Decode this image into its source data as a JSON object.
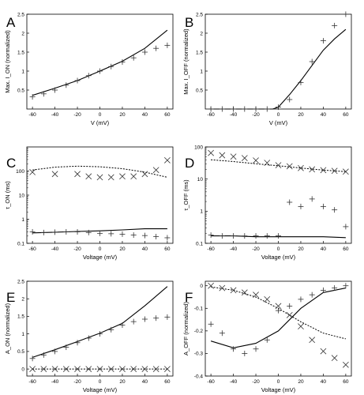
{
  "chart_data": [
    {
      "panel": "A",
      "type": "line",
      "xlabel": "V (mV)",
      "ylabel": "Max. I_ON (normalized)",
      "xlim": [
        -65,
        65
      ],
      "ylim": [
        0,
        2.5
      ],
      "xticks": [
        -60,
        -40,
        -20,
        0,
        20,
        40,
        60
      ],
      "yticks": [
        0.5,
        1,
        1.5,
        2,
        2.5
      ],
      "series": [
        {
          "style": "solid",
          "x": [
            -60,
            -40,
            -20,
            0,
            20,
            40,
            60
          ],
          "y": [
            0.36,
            0.55,
            0.75,
            1.0,
            1.26,
            1.6,
            2.08
          ]
        },
        {
          "style": "plus",
          "x": [
            -60,
            -50,
            -40,
            -30,
            -20,
            -10,
            0,
            10,
            20,
            30,
            40,
            50,
            60
          ],
          "y": [
            0.32,
            0.4,
            0.5,
            0.63,
            0.75,
            0.88,
            1.0,
            1.12,
            1.24,
            1.35,
            1.5,
            1.6,
            1.68
          ]
        }
      ]
    },
    {
      "panel": "B",
      "type": "line",
      "xlabel": "V (mV)",
      "ylabel": "Max. I_OFF (normalized)",
      "xlim": [
        -65,
        65
      ],
      "ylim": [
        0,
        2.5
      ],
      "xticks": [
        -60,
        -40,
        -20,
        0,
        20,
        40,
        60
      ],
      "yticks": [
        0.5,
        1,
        1.5,
        2,
        2.5
      ],
      "series": [
        {
          "style": "solid",
          "x": [
            -60,
            -20,
            -5,
            0,
            10,
            20,
            30,
            40,
            50,
            60
          ],
          "y": [
            0.0,
            0.0,
            0.0,
            0.05,
            0.38,
            0.75,
            1.15,
            1.55,
            1.85,
            2.1
          ]
        },
        {
          "style": "plus",
          "x": [
            -60,
            -50,
            -40,
            -30,
            -20,
            -10,
            0,
            10,
            20,
            30,
            40,
            50,
            60
          ],
          "y": [
            0.0,
            0.0,
            0.0,
            0.0,
            0.0,
            0.0,
            0.05,
            0.25,
            0.7,
            1.25,
            1.8,
            2.2,
            2.5
          ]
        }
      ]
    },
    {
      "panel": "C",
      "type": "line",
      "xlabel": "Voltage (mV)",
      "ylabel": "τ_ON (ms)",
      "yscale": "log",
      "xlim": [
        -65,
        65
      ],
      "ylim": [
        0.1,
        1000
      ],
      "xticks": [
        -60,
        -40,
        -20,
        0,
        20,
        40,
        60
      ],
      "yticks": [
        0.1,
        1,
        10,
        100
      ],
      "series": [
        {
          "style": "dotted",
          "x": [
            -60,
            -40,
            -20,
            0,
            20,
            40,
            60
          ],
          "y": [
            110,
            145,
            160,
            150,
            125,
            90,
            55
          ]
        },
        {
          "style": "solid",
          "x": [
            -60,
            -40,
            -20,
            0,
            20,
            40,
            60
          ],
          "y": [
            0.27,
            0.29,
            0.31,
            0.33,
            0.36,
            0.4,
            0.4
          ]
        },
        {
          "style": "cross",
          "x": [
            -60,
            -40,
            -20,
            -10,
            0,
            10,
            20,
            30,
            40,
            50,
            60
          ],
          "y": [
            90,
            75,
            75,
            60,
            55,
            55,
            60,
            60,
            75,
            110,
            280
          ]
        },
        {
          "style": "plus",
          "x": [
            -60,
            -50,
            -40,
            -30,
            -20,
            -10,
            0,
            10,
            20,
            30,
            40,
            50,
            60
          ],
          "y": [
            0.3,
            0.28,
            0.29,
            0.3,
            0.3,
            0.28,
            0.26,
            0.25,
            0.24,
            0.22,
            0.21,
            0.19,
            0.17
          ]
        }
      ]
    },
    {
      "panel": "D",
      "type": "line",
      "xlabel": "Voltage (mV)",
      "ylabel": "τ_OFF (ms)",
      "yscale": "log",
      "xlim": [
        -65,
        65
      ],
      "ylim": [
        0.1,
        100
      ],
      "xticks": [
        -60,
        -40,
        -20,
        0,
        20,
        40,
        60
      ],
      "yticks": [
        0.1,
        1,
        10,
        100
      ],
      "series": [
        {
          "style": "dotted",
          "x": [
            -60,
            -40,
            -20,
            0,
            20,
            40,
            60
          ],
          "y": [
            40,
            35,
            30,
            26,
            22,
            19,
            17
          ]
        },
        {
          "style": "solid",
          "x": [
            -60,
            -40,
            -20,
            0,
            20,
            40,
            60
          ],
          "y": [
            0.17,
            0.17,
            0.16,
            0.16,
            0.16,
            0.16,
            0.15
          ]
        },
        {
          "style": "cross",
          "x": [
            -60,
            -50,
            -40,
            -30,
            -20,
            -10,
            0,
            10,
            20,
            30,
            40,
            50,
            60
          ],
          "y": [
            65,
            55,
            50,
            45,
            38,
            32,
            27,
            25,
            22,
            20,
            19,
            18,
            17
          ]
        },
        {
          "style": "plus",
          "x": [
            -60,
            -50,
            -40,
            -30,
            -20,
            -10,
            0,
            10,
            20,
            30,
            40,
            50,
            60
          ],
          "y": [
            0.18,
            0.17,
            0.17,
            0.17,
            0.17,
            0.17,
            0.17,
            1.9,
            1.4,
            2.4,
            1.4,
            1.1,
            0.33
          ]
        }
      ]
    },
    {
      "panel": "E",
      "type": "line",
      "xlabel": "Voltage (mV)",
      "ylabel": "A_ON (normalized)",
      "xlim": [
        -65,
        65
      ],
      "ylim": [
        -0.2,
        2.5
      ],
      "xticks": [
        -60,
        -40,
        -20,
        0,
        20,
        40,
        60
      ],
      "yticks": [
        0,
        0.5,
        1,
        1.5,
        2,
        2.5
      ],
      "series": [
        {
          "style": "solid",
          "x": [
            -60,
            -40,
            -20,
            0,
            20,
            40,
            60
          ],
          "y": [
            0.33,
            0.55,
            0.78,
            1.02,
            1.3,
            1.8,
            2.35
          ]
        },
        {
          "style": "dotted",
          "x": [
            -60,
            60
          ],
          "y": [
            0.0,
            0.0
          ]
        },
        {
          "style": "plus",
          "x": [
            -60,
            -50,
            -40,
            -30,
            -20,
            -10,
            0,
            10,
            20,
            30,
            40,
            50,
            60
          ],
          "y": [
            0.3,
            0.4,
            0.5,
            0.62,
            0.75,
            0.88,
            1.0,
            1.12,
            1.25,
            1.35,
            1.42,
            1.45,
            1.48
          ]
        },
        {
          "style": "cross",
          "x": [
            -60,
            -50,
            -40,
            -30,
            -20,
            -10,
            0,
            10,
            20,
            30,
            40,
            50,
            60
          ],
          "y": [
            0,
            0,
            0,
            0,
            0,
            0,
            0,
            0,
            0,
            0,
            0,
            0,
            0
          ]
        }
      ]
    },
    {
      "panel": "F",
      "type": "line",
      "xlabel": "Voltage (mV)",
      "ylabel": "A_OFF (normalized)",
      "xlim": [
        -65,
        65
      ],
      "ylim": [
        -0.4,
        0.02
      ],
      "xticks": [
        -60,
        -40,
        -20,
        0,
        20,
        40,
        60
      ],
      "yticks": [
        0,
        -0.1,
        -0.2,
        -0.3,
        -0.4
      ],
      "series": [
        {
          "style": "solid",
          "x": [
            -60,
            -40,
            -20,
            0,
            20,
            40,
            60
          ],
          "y": [
            -0.245,
            -0.275,
            -0.255,
            -0.2,
            -0.1,
            -0.03,
            -0.01
          ]
        },
        {
          "style": "dotted",
          "x": [
            -60,
            -40,
            -20,
            0,
            20,
            40,
            60
          ],
          "y": [
            -0.005,
            -0.02,
            -0.05,
            -0.1,
            -0.16,
            -0.21,
            -0.235
          ]
        },
        {
          "style": "plus",
          "x": [
            -60,
            -50,
            -40,
            -30,
            -20,
            -10,
            0,
            10,
            20,
            30,
            40,
            50,
            60
          ],
          "y": [
            -0.17,
            -0.21,
            -0.28,
            -0.3,
            -0.28,
            -0.24,
            -0.11,
            -0.09,
            -0.06,
            -0.04,
            -0.02,
            -0.01,
            0.0
          ]
        },
        {
          "style": "cross",
          "x": [
            -60,
            -50,
            -40,
            -30,
            -20,
            -10,
            0,
            10,
            20,
            30,
            40,
            50,
            60
          ],
          "y": [
            0.0,
            -0.01,
            -0.02,
            -0.03,
            -0.04,
            -0.06,
            -0.09,
            -0.13,
            -0.18,
            -0.24,
            -0.29,
            -0.32,
            -0.35
          ]
        }
      ]
    }
  ]
}
